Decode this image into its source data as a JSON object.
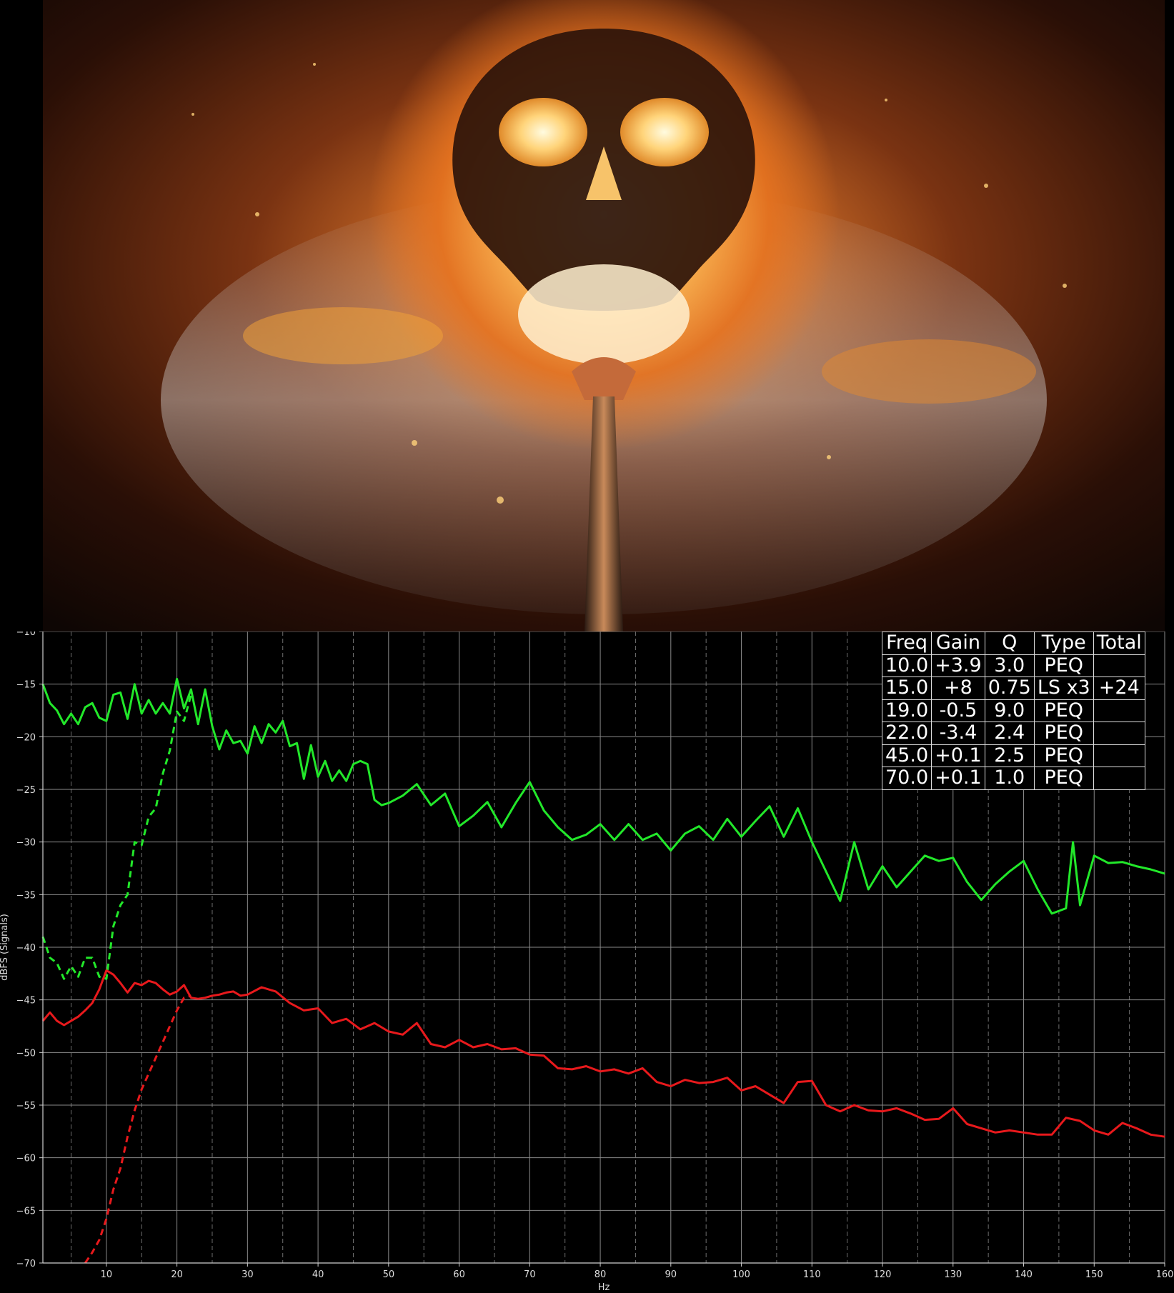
{
  "poster": {
    "description_free": true
  },
  "colors": {
    "background": "#000000",
    "grid": "#8a8a8a",
    "series_green": "#22e82a",
    "series_red": "#e8191c",
    "text": "#ffffff"
  },
  "chart_data": {
    "type": "line",
    "xlabel": "Hz",
    "ylabel": "dBFS (Signals)",
    "xlim": [
      1,
      160
    ],
    "ylim": [
      -70,
      -10
    ],
    "x_ticks": [
      10,
      20,
      30,
      40,
      50,
      60,
      70,
      80,
      90,
      100,
      110,
      120,
      130,
      140,
      150,
      160
    ],
    "y_ticks": [
      -10,
      -15,
      -20,
      -25,
      -30,
      -35,
      -40,
      -45,
      -50,
      -55,
      -60,
      -65,
      -70
    ],
    "grid": true,
    "legend": "none",
    "series": [
      {
        "color": "#22e82a",
        "style": "solid",
        "x": [
          1,
          2,
          3,
          4,
          5,
          6,
          7,
          8,
          9,
          10,
          11,
          12,
          13,
          14,
          15,
          16,
          17,
          18,
          19,
          20,
          21,
          22,
          23,
          24,
          25,
          26,
          27,
          28,
          29,
          30,
          31,
          32,
          33,
          34,
          35,
          36,
          37,
          38,
          39,
          40,
          41,
          42,
          43,
          44,
          45,
          46,
          47,
          48,
          49,
          50,
          52,
          54,
          56,
          58,
          60,
          62,
          64,
          66,
          68,
          70,
          72,
          74,
          76,
          78,
          80,
          82,
          84,
          86,
          88,
          90,
          92,
          94,
          96,
          98,
          100,
          102,
          104,
          106,
          108,
          110,
          112,
          114,
          116,
          118,
          120,
          122,
          124,
          126,
          128,
          130,
          132,
          134,
          136,
          138,
          140,
          142,
          144,
          146,
          147,
          148,
          150,
          152,
          154,
          156,
          158,
          160
        ],
        "values": [
          -15,
          -16.8,
          -17.5,
          -18.8,
          -17.8,
          -18.8,
          -17.2,
          -16.8,
          -18.2,
          -18.5,
          -16,
          -15.8,
          -18.3,
          -15,
          -17.8,
          -16.5,
          -17.8,
          -16.8,
          -17.8,
          -14.5,
          -17.3,
          -15.5,
          -18.8,
          -15.5,
          -19,
          -21.2,
          -19.4,
          -20.6,
          -20.4,
          -21.6,
          -19,
          -20.6,
          -18.8,
          -19.6,
          -18.5,
          -20.9,
          -20.6,
          -24,
          -20.8,
          -23.8,
          -22.3,
          -24.2,
          -23.2,
          -24.2,
          -22.6,
          -22.3,
          -22.6,
          -26,
          -26.5,
          -26.3,
          -25.6,
          -24.5,
          -26.5,
          -25.4,
          -28.5,
          -27.5,
          -26.2,
          -28.6,
          -26.3,
          -24.3,
          -27,
          -28.6,
          -29.8,
          -29.3,
          -28.3,
          -29.8,
          -28.3,
          -29.8,
          -29.2,
          -30.8,
          -29.2,
          -28.5,
          -29.8,
          -27.8,
          -29.5,
          -28,
          -26.6,
          -29.5,
          -26.8,
          -30,
          -32.8,
          -35.6,
          -30,
          -34.5,
          -32.3,
          -34.3,
          -32.8,
          -31.3,
          -31.8,
          -31.5,
          -33.8,
          -35.5,
          -34,
          -32.8,
          -31.8,
          -34.5,
          -36.8,
          -36.3,
          -30,
          -36,
          -31.3,
          -32,
          -31.9,
          -32.3,
          -32.6,
          -33
        ]
      },
      {
        "color": "#22e82a",
        "style": "dashed",
        "x": [
          1,
          2,
          3,
          4,
          5,
          6,
          7,
          8,
          9,
          10,
          11,
          12,
          13,
          14,
          15,
          16,
          17,
          18,
          19,
          20,
          21,
          22
        ],
        "values": [
          -39,
          -41,
          -41.5,
          -43,
          -41.8,
          -42.8,
          -41,
          -41,
          -42.8,
          -43,
          -38,
          -36,
          -35,
          -30,
          -30.3,
          -27.6,
          -26.8,
          -23.5,
          -21.3,
          -17.6,
          -18.5,
          -16
        ]
      },
      {
        "color": "#e8191c",
        "style": "solid",
        "x": [
          1,
          2,
          3,
          4,
          5,
          6,
          7,
          8,
          9,
          10,
          11,
          12,
          13,
          14,
          15,
          16,
          17,
          18,
          19,
          20,
          21,
          22,
          23,
          24,
          25,
          26,
          27,
          28,
          29,
          30,
          32,
          34,
          36,
          38,
          40,
          42,
          44,
          46,
          48,
          50,
          52,
          54,
          56,
          58,
          60,
          62,
          64,
          66,
          68,
          70,
          72,
          74,
          76,
          78,
          80,
          82,
          84,
          86,
          88,
          90,
          92,
          94,
          96,
          98,
          100,
          102,
          104,
          106,
          108,
          110,
          112,
          114,
          116,
          118,
          120,
          122,
          124,
          126,
          128,
          130,
          132,
          134,
          136,
          138,
          140,
          142,
          144,
          146,
          148,
          150,
          152,
          154,
          156,
          158,
          160
        ],
        "values": [
          -47,
          -46.2,
          -47,
          -47.4,
          -47,
          -46.6,
          -46,
          -45.3,
          -44,
          -42.2,
          -42.6,
          -43.4,
          -44.3,
          -43.4,
          -43.6,
          -43.2,
          -43.4,
          -44,
          -44.5,
          -44.2,
          -43.6,
          -44.8,
          -44.9,
          -44.8,
          -44.6,
          -44.5,
          -44.3,
          -44.2,
          -44.6,
          -44.5,
          -43.8,
          -44.2,
          -45.3,
          -46,
          -45.8,
          -47.2,
          -46.8,
          -47.8,
          -47.2,
          -48,
          -48.3,
          -47.2,
          -49.2,
          -49.5,
          -48.8,
          -49.5,
          -49.2,
          -49.7,
          -49.6,
          -50.2,
          -50.3,
          -51.5,
          -51.6,
          -51.3,
          -51.8,
          -51.6,
          -52,
          -51.5,
          -52.8,
          -53.2,
          -52.6,
          -52.9,
          -52.8,
          -52.4,
          -53.6,
          -53.2,
          -54,
          -54.8,
          -52.8,
          -52.7,
          -55,
          -55.6,
          -55,
          -55.5,
          -55.6,
          -55.3,
          -55.8,
          -56.4,
          -56.3,
          -55.3,
          -56.8,
          -57.2,
          -57.6,
          -57.4,
          -57.6,
          -57.8,
          -57.8,
          -56.2,
          -56.5,
          -57.4,
          -57.8,
          -56.7,
          -57.2,
          -57.8,
          -58
        ]
      },
      {
        "color": "#e8191c",
        "style": "dashed",
        "x": [
          7,
          8,
          9,
          10,
          11,
          12,
          13,
          14,
          15,
          16,
          17,
          18,
          19,
          20,
          21,
          22
        ],
        "values": [
          -70,
          -69,
          -67.8,
          -65.8,
          -63,
          -61,
          -58,
          -55.5,
          -53.5,
          -52,
          -50.5,
          -49,
          -47.5,
          -46,
          -44.8,
          -44.6
        ]
      }
    ],
    "table": {
      "headers": [
        "Freq",
        "Gain",
        "Q",
        "Type",
        "Total"
      ],
      "rows": [
        [
          "10.0",
          "+3.9",
          "3.0",
          "PEQ",
          ""
        ],
        [
          "15.0",
          "+8",
          "0.75",
          "LS x3",
          "+24"
        ],
        [
          "19.0",
          "-0.5",
          "9.0",
          "PEQ",
          ""
        ],
        [
          "22.0",
          "-3.4",
          "2.4",
          "PEQ",
          ""
        ],
        [
          "45.0",
          "+0.1",
          "2.5",
          "PEQ",
          ""
        ],
        [
          "70.0",
          "+0.1",
          "1.0",
          "PEQ",
          ""
        ]
      ]
    }
  }
}
